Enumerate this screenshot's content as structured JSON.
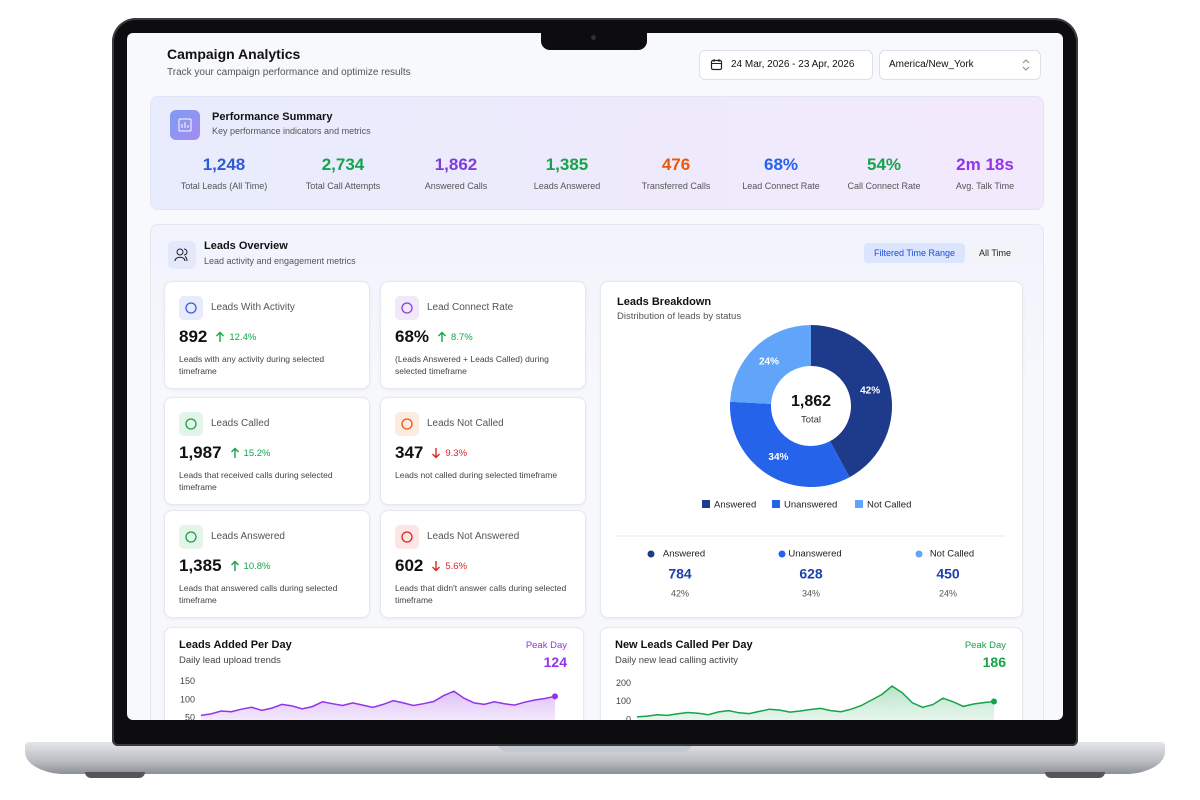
{
  "header": {
    "title": "Campaign Analytics",
    "subtitle": "Track your campaign performance and optimize results",
    "date_range": "24 Mar, 2026 - 23 Apr, 2026",
    "timezone": "America/New_York"
  },
  "summary": {
    "title": "Performance Summary",
    "subtitle": "Key performance indicators and metrics",
    "metrics": [
      {
        "value": "1,248",
        "label": "Total Leads (All Time)",
        "color": "#2f5bd8"
      },
      {
        "value": "2,734",
        "label": "Total Call Attempts",
        "color": "#16a34a"
      },
      {
        "value": "1,862",
        "label": "Answered Calls",
        "color": "#7e3fd6"
      },
      {
        "value": "1,385",
        "label": "Leads Answered",
        "color": "#16a34a"
      },
      {
        "value": "476",
        "label": "Transferred Calls",
        "color": "#ea580c"
      },
      {
        "value": "68%",
        "label": "Lead Connect Rate",
        "color": "#2563eb"
      },
      {
        "value": "54%",
        "label": "Call Connect Rate",
        "color": "#16a34a"
      },
      {
        "value": "2m 18s",
        "label": "Avg. Talk Time",
        "color": "#9333ea"
      }
    ]
  },
  "leads_overview": {
    "title": "Leads Overview",
    "subtitle": "Lead activity and engagement metrics",
    "tabs": [
      "Filtered Time Range",
      "All Time"
    ],
    "active_tab": 0,
    "cards": [
      {
        "title": "Leads With Activity",
        "value": "892",
        "change": "12.4%",
        "trend": "up",
        "icon_color": "#3b5bdb",
        "description": "Leads with any activity during selected timeframe"
      },
      {
        "title": "Lead Connect Rate",
        "value": "68%",
        "change": "8.7%",
        "trend": "up",
        "icon_color": "#8b3fd9",
        "description": "(Leads Answered + Leads Called) during selected timeframe"
      },
      {
        "title": "Leads Called",
        "value": "1,987",
        "change": "15.2%",
        "trend": "up",
        "icon_color": "#16a34a",
        "description": "Leads that received calls during selected timeframe"
      },
      {
        "title": "Leads Not Called",
        "value": "347",
        "change": "9.3%",
        "trend": "down",
        "icon_color": "#ea580c",
        "description": "Leads not called during selected timeframe"
      },
      {
        "title": "Leads Answered",
        "value": "1,385",
        "change": "10.8%",
        "trend": "up",
        "icon_color": "#16a34a",
        "description": "Leads that answered calls during selected timeframe"
      },
      {
        "title": "Leads Not Answered",
        "value": "602",
        "change": "5.6%",
        "trend": "down",
        "icon_color": "#dc2626",
        "description": "Leads that didn't answer calls during selected timeframe"
      }
    ]
  },
  "leads_breakdown": {
    "title": "Leads Breakdown",
    "subtitle": "Distribution of leads by status",
    "total": "1,862",
    "total_label": "Total",
    "series": [
      {
        "name": "Answered",
        "color": "#1e3a8a",
        "value": 784,
        "percent_label": "42%"
      },
      {
        "name": "Unanswered",
        "color": "#2563eb",
        "value": 628,
        "percent_label": "34%"
      },
      {
        "name": "Not Called",
        "color": "#60a5fa",
        "value": 450,
        "percent_label": "24%"
      }
    ]
  },
  "daily_charts": [
    {
      "title": "Leads Added Per Day",
      "subtitle": "Daily lead upload trends",
      "peak_label": "Peak Day",
      "peak": 124,
      "color": "#9333ea",
      "ylim": [
        40,
        160
      ],
      "yticks": [
        150,
        100,
        50
      ],
      "values": [
        58,
        62,
        70,
        68,
        75,
        80,
        72,
        78,
        88,
        84,
        76,
        82,
        95,
        90,
        85,
        92,
        86,
        80,
        88,
        98,
        92,
        85,
        90,
        96,
        112,
        124,
        105,
        92,
        88,
        95,
        90,
        86,
        94,
        100,
        104,
        110
      ]
    },
    {
      "title": "New Leads Called Per Day",
      "subtitle": "Daily new lead calling activity",
      "peak_label": "Peak Day",
      "peak": 186,
      "color": "#16a34a",
      "ylim": [
        -10,
        230
      ],
      "yticks": [
        200,
        100,
        0
      ],
      "values": [
        18,
        22,
        30,
        26,
        35,
        42,
        38,
        30,
        45,
        52,
        40,
        36,
        48,
        60,
        55,
        44,
        50,
        58,
        64,
        52,
        46,
        60,
        80,
        110,
        140,
        186,
        150,
        95,
        70,
        85,
        120,
        100,
        75,
        88,
        96,
        102
      ]
    }
  ]
}
